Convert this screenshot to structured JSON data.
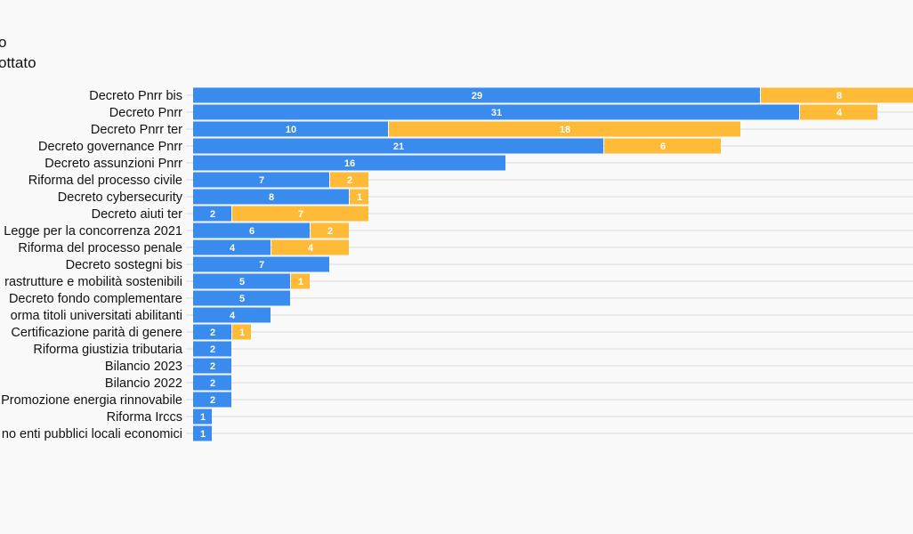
{
  "legend": {
    "line1": "o",
    "line2": "ottato"
  },
  "chart_data": {
    "type": "bar",
    "orientation": "horizontal",
    "stacked": true,
    "categories": [
      "Decreto Pnrr bis",
      "Decreto Pnrr",
      "Decreto Pnrr ter",
      "Decreto governance Pnrr",
      "Decreto assunzioni Pnrr",
      "Riforma del processo civile",
      "Decreto cybersecurity",
      "Decreto aiuti ter",
      "Legge per la concorrenza 2021",
      "Riforma del processo penale",
      "Decreto sostegni bis",
      "...rastrutture e mobilità sostenibili",
      "Decreto fondo complementare",
      "...orma titoli universitati abilitanti",
      "Certificazione parità di genere",
      "Riforma giustizia tributaria",
      "Bilancio 2023",
      "Bilancio 2022",
      "Promozione energia rinnovabile",
      "Riforma Irccs",
      "...no enti pubblici locali economici"
    ],
    "series": [
      {
        "color": "#3a8bee",
        "values": [
          29,
          31,
          10,
          21,
          16,
          7,
          8,
          2,
          6,
          4,
          7,
          5,
          5,
          4,
          2,
          2,
          2,
          2,
          2,
          1,
          1
        ]
      },
      {
        "color": "#ffbb38",
        "values": [
          8,
          4,
          18,
          6,
          0,
          2,
          1,
          7,
          2,
          4,
          0,
          1,
          0,
          0,
          1,
          0,
          0,
          0,
          0,
          0,
          0
        ]
      }
    ],
    "grid": true
  }
}
